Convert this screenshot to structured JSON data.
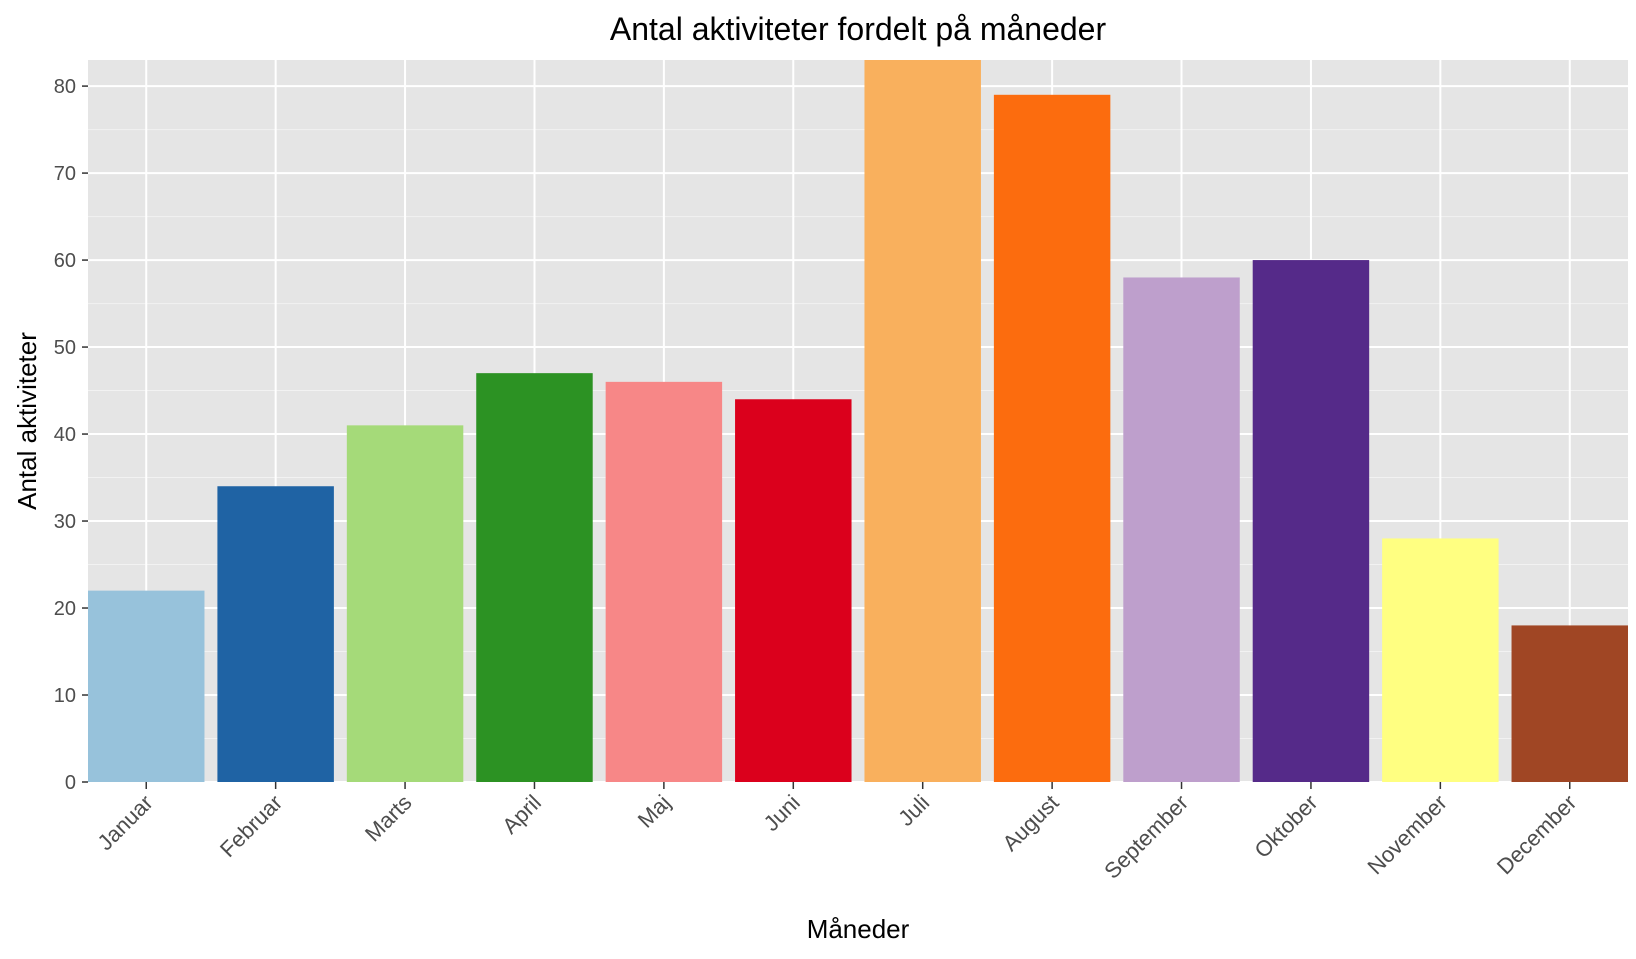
{
  "chart_data": {
    "type": "bar",
    "title": "Antal aktiviteter fordelt på måneder",
    "xlabel": "Måneder",
    "ylabel": "Antal aktiviteter",
    "categories": [
      "Januar",
      "Februar",
      "Marts",
      "April",
      "Maj",
      "Juni",
      "Juli",
      "August",
      "September",
      "Oktober",
      "November",
      "December"
    ],
    "values": [
      22,
      34,
      41,
      47,
      46,
      44,
      83,
      79,
      58,
      60,
      28,
      18
    ],
    "colors": [
      "#97C2DB",
      "#1F63A4",
      "#A5DA79",
      "#2C9223",
      "#F78787",
      "#DB001C",
      "#F9B05D",
      "#FC6C0E",
      "#BE9FCC",
      "#552A89",
      "#FFFF81",
      "#A04624"
    ],
    "ylim": [
      0,
      83
    ],
    "yticks": [
      0,
      10,
      20,
      30,
      40,
      50,
      60,
      70,
      80
    ],
    "grid": true,
    "legend": "none"
  }
}
